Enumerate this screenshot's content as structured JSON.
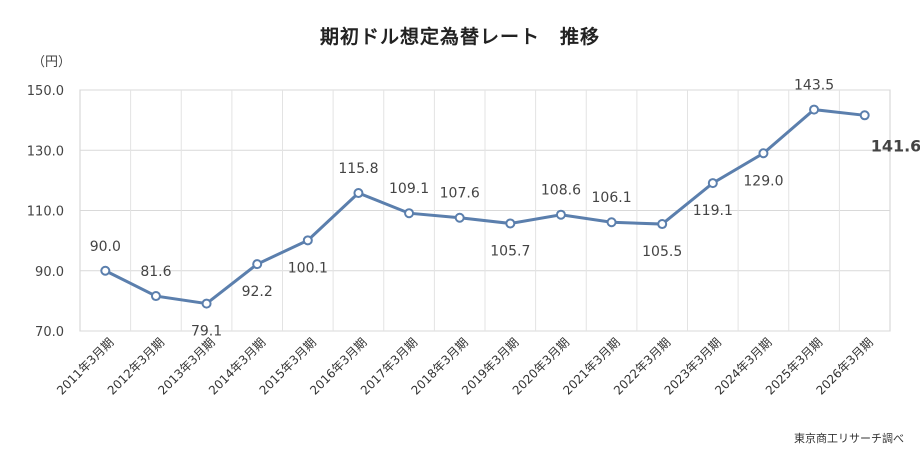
{
  "chart_data": {
    "type": "line",
    "title": "期初ドル想定為替レート　推移",
    "yunit": "（円）",
    "source": "東京商工リサーチ調べ",
    "categories": [
      "2011年3月期",
      "2012年3月期",
      "2013年3月期",
      "2014年3月期",
      "2015年3月期",
      "2016年3月期",
      "2017年3月期",
      "2018年3月期",
      "2019年3月期",
      "2020年3月期",
      "2021年3月期",
      "2022年3月期",
      "2023年3月期",
      "2024年3月期",
      "2025年3月期",
      "2026年3月期"
    ],
    "values": [
      90.0,
      81.6,
      79.1,
      92.2,
      100.1,
      115.8,
      109.1,
      107.6,
      105.7,
      108.6,
      106.1,
      105.5,
      119.1,
      129.0,
      143.5,
      141.6
    ],
    "value_labels": [
      "90.0",
      "81.6",
      "79.1",
      "92.2",
      "100.1",
      "115.8",
      "109.1",
      "107.6",
      "105.7",
      "108.6",
      "106.1",
      "105.5",
      "119.1",
      "129.0",
      "143.5",
      "141.6"
    ],
    "ylim": [
      70,
      150
    ],
    "yticks": [
      "70.0",
      "90.0",
      "110.0",
      "130.0",
      "150.0"
    ],
    "grid": true,
    "line_color": "#5b7fad",
    "highlight_color": "#e02020",
    "highlight_index": 15
  }
}
